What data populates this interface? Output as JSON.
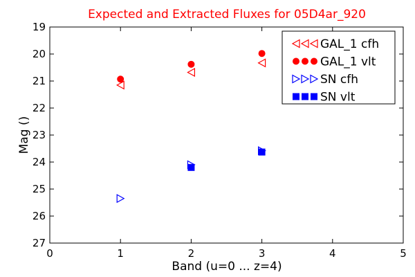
{
  "chart_data": {
    "type": "scatter",
    "title": "Expected and Extracted Fluxes for 05D4ar_920",
    "title_color": "#ff0000",
    "xlabel": "Band (u=0 ... z=4)",
    "ylabel": "Mag ()",
    "xlim": [
      0,
      5
    ],
    "ylim": [
      27,
      19
    ],
    "y_inverted": true,
    "x_ticks": [
      "0",
      "1",
      "2",
      "3",
      "4",
      "5"
    ],
    "y_ticks": [
      "19",
      "20",
      "21",
      "22",
      "23",
      "24",
      "25",
      "26",
      "27"
    ],
    "grid": false,
    "legend_position": "top-right",
    "series": [
      {
        "name": "GAL_1 cfh",
        "marker": "triangle-left-open",
        "color": "#ff0000",
        "x": [
          1,
          2,
          3
        ],
        "y": [
          21.15,
          20.68,
          20.33
        ]
      },
      {
        "name": "GAL_1 vlt",
        "marker": "circle-filled",
        "color": "#ff0000",
        "x": [
          1,
          2,
          3
        ],
        "y": [
          20.93,
          20.38,
          19.98
        ]
      },
      {
        "name": "SN cfh",
        "marker": "triangle-right-open",
        "color": "#0000ff",
        "x": [
          1,
          2,
          3
        ],
        "y": [
          25.35,
          24.1,
          23.58
        ]
      },
      {
        "name": "SN vlt",
        "marker": "square-filled",
        "color": "#0000ff",
        "x": [
          2,
          3
        ],
        "y": [
          24.2,
          23.63
        ]
      }
    ]
  }
}
